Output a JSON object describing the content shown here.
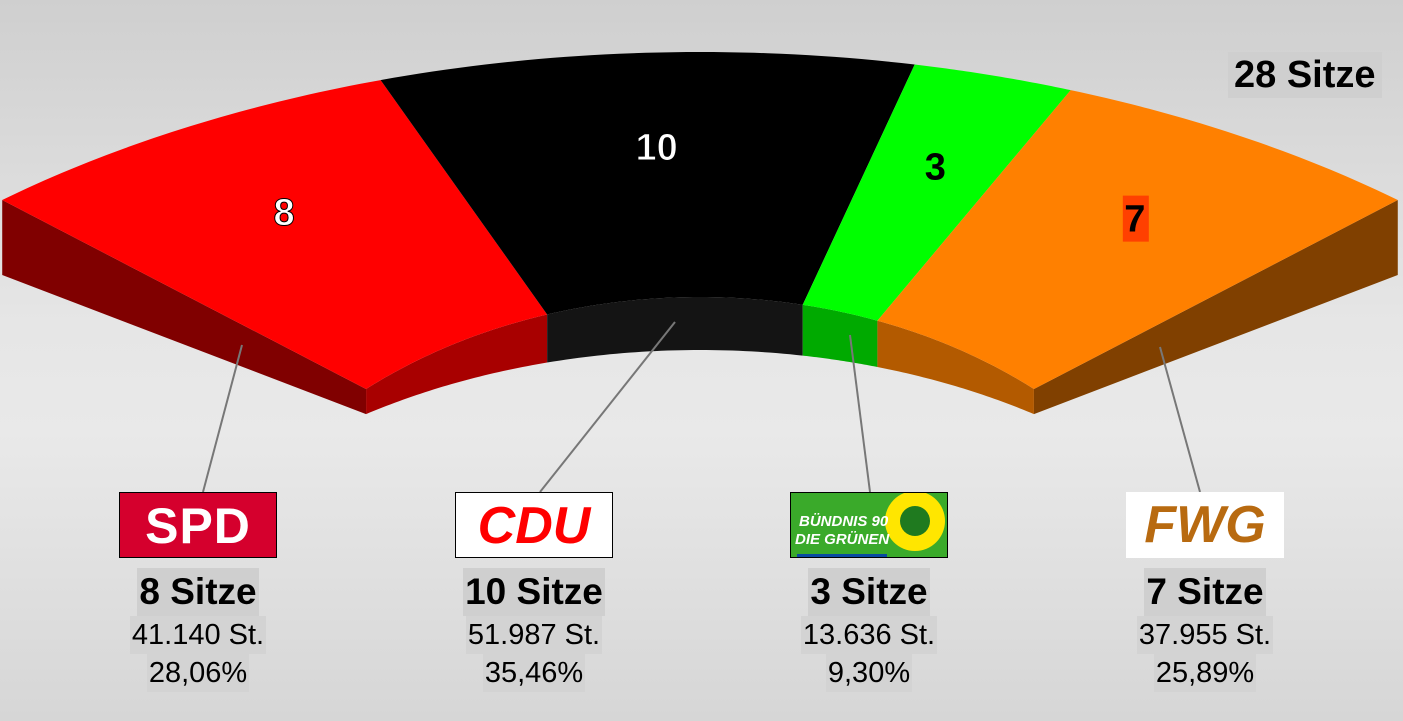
{
  "chart_data": {
    "type": "parliament-arc",
    "total_label": "28 Sitze",
    "total_seats": 28,
    "parties": [
      {
        "name": "SPD",
        "logo_text": "SPD",
        "seats": 8,
        "seats_label": "8 Sitze",
        "votes": "41.140 St.",
        "percent": "28,06%",
        "color": "#ff0000",
        "side_color": "#a80000",
        "cap_color": "#800000"
      },
      {
        "name": "CDU",
        "logo_text": "CDU",
        "seats": 10,
        "seats_label": "10 Sitze",
        "votes": "51.987 St.",
        "percent": "35,46%",
        "color": "#000000",
        "side_color": "#141414"
      },
      {
        "name": "Bündnis 90 / Die Grünen",
        "logo_text": [
          "BÜNDNIS 90",
          "DIE GRÜNEN"
        ],
        "seats": 3,
        "seats_label": "3 Sitze",
        "votes": "13.636 St.",
        "percent": "9,30%",
        "color": "#00ff00",
        "side_color": "#00aa00"
      },
      {
        "name": "FWG",
        "logo_text": "FWG",
        "seats": 7,
        "seats_label": "7 Sitze",
        "votes": "37.955 St.",
        "percent": "25,89%",
        "color": "#ff8000",
        "side_color": "#b35a00",
        "cap_color": "#804000"
      }
    ]
  }
}
